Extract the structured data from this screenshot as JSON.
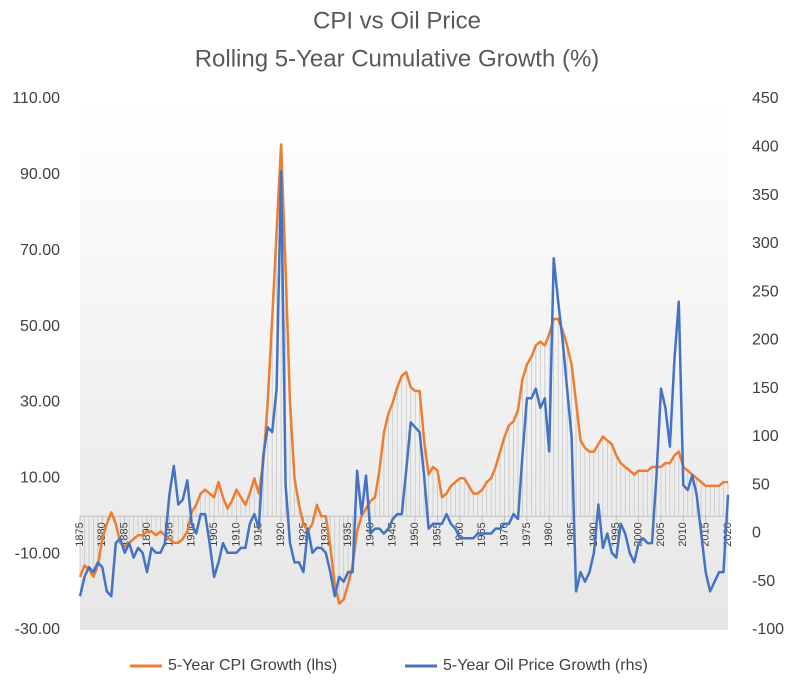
{
  "chart_data": {
    "type": "line",
    "title": "CPI vs Oil Price",
    "subtitle": "Rolling 5-Year Cumulative Growth (%)",
    "x": [
      1875,
      1876,
      1877,
      1878,
      1879,
      1880,
      1881,
      1882,
      1883,
      1884,
      1885,
      1886,
      1887,
      1888,
      1889,
      1890,
      1891,
      1892,
      1893,
      1894,
      1895,
      1896,
      1897,
      1898,
      1899,
      1900,
      1901,
      1902,
      1903,
      1904,
      1905,
      1906,
      1907,
      1908,
      1909,
      1910,
      1911,
      1912,
      1913,
      1914,
      1915,
      1916,
      1917,
      1918,
      1919,
      1920,
      1921,
      1922,
      1923,
      1924,
      1925,
      1926,
      1927,
      1928,
      1929,
      1930,
      1931,
      1932,
      1933,
      1934,
      1935,
      1936,
      1937,
      1938,
      1939,
      1940,
      1941,
      1942,
      1943,
      1944,
      1945,
      1946,
      1947,
      1948,
      1949,
      1950,
      1951,
      1952,
      1953,
      1954,
      1955,
      1956,
      1957,
      1958,
      1959,
      1960,
      1961,
      1962,
      1963,
      1964,
      1965,
      1966,
      1967,
      1968,
      1969,
      1970,
      1971,
      1972,
      1973,
      1974,
      1975,
      1976,
      1977,
      1978,
      1979,
      1980,
      1981,
      1982,
      1983,
      1984,
      1985,
      1986,
      1987,
      1988,
      1989,
      1990,
      1991,
      1992,
      1993,
      1994,
      1995,
      1996,
      1997,
      1998,
      1999,
      2000,
      2001,
      2002,
      2003,
      2004,
      2005,
      2006,
      2007,
      2008,
      2009,
      2010,
      2011,
      2012,
      2013,
      2014,
      2015,
      2016,
      2017,
      2018,
      2019,
      2020
    ],
    "xlim": [
      1875,
      2020
    ],
    "xticks": [
      1875,
      1880,
      1885,
      1890,
      1895,
      1900,
      1905,
      1910,
      1915,
      1920,
      1925,
      1930,
      1935,
      1940,
      1945,
      1950,
      1955,
      1960,
      1965,
      1970,
      1975,
      1980,
      1985,
      1990,
      1995,
      2000,
      2005,
      2010,
      2015,
      2020
    ],
    "ylim": [
      -30,
      110
    ],
    "yticks": [
      {
        "value": -30,
        "label": "-30.00"
      },
      {
        "value": -10,
        "label": "-10.00"
      },
      {
        "value": 10,
        "label": "10.00"
      },
      {
        "value": 30,
        "label": "30.00"
      },
      {
        "value": 50,
        "label": "50.00"
      },
      {
        "value": 70,
        "label": "70.00"
      },
      {
        "value": 90,
        "label": "90.00"
      },
      {
        "value": 110,
        "label": "110.00"
      }
    ],
    "y2lim": [
      -100,
      450
    ],
    "y2ticks": [
      -100,
      -50,
      0,
      50,
      100,
      150,
      200,
      250,
      300,
      350,
      400,
      450
    ],
    "series": [
      {
        "name": "5-Year CPI Growth (lhs)",
        "color": "#ed7d31",
        "axis": "y",
        "values": [
          -16,
          -13,
          -14,
          -16,
          -13,
          -6,
          -2,
          1,
          -2,
          -7,
          -8,
          -7,
          -6,
          -5,
          -5,
          -4,
          -4,
          -5,
          -4,
          -5,
          -6,
          -7,
          -7,
          -6,
          -4,
          1,
          3,
          6,
          7,
          6,
          5,
          9,
          5,
          2,
          4,
          7,
          5,
          3,
          6,
          10,
          6,
          14,
          30,
          52,
          75,
          98,
          65,
          30,
          10,
          3,
          -2,
          -4,
          -2,
          3,
          0,
          0,
          -8,
          -18,
          -23,
          -22,
          -18,
          -13,
          -4,
          0,
          2,
          4,
          5,
          12,
          22,
          27,
          30,
          34,
          37,
          38,
          34,
          33,
          33,
          20,
          11,
          13,
          12,
          5,
          6,
          8,
          9,
          10,
          10,
          8,
          6,
          6,
          7,
          9,
          10,
          13,
          17,
          21,
          24,
          25,
          28,
          36,
          40,
          42,
          45,
          46,
          45,
          48,
          52,
          52,
          49,
          45,
          40,
          30,
          20,
          18,
          17,
          17,
          19,
          21,
          20,
          19,
          16,
          14,
          13,
          12,
          11,
          12,
          12,
          12,
          13,
          13,
          13,
          14,
          14,
          16,
          17,
          13,
          12,
          11,
          10,
          9,
          8,
          8,
          8,
          8,
          9,
          9
        ]
      },
      {
        "name": "5-Year Oil Price Growth (rhs)",
        "color": "#4472c4",
        "axis": "y2",
        "values": [
          -65,
          -45,
          -35,
          -40,
          -30,
          -35,
          -60,
          -65,
          -10,
          -5,
          -20,
          -10,
          -25,
          -15,
          -20,
          -40,
          -15,
          -20,
          -20,
          -10,
          40,
          70,
          30,
          35,
          55,
          10,
          0,
          20,
          20,
          -10,
          -45,
          -30,
          -10,
          -20,
          -20,
          -20,
          -15,
          -15,
          10,
          20,
          5,
          80,
          110,
          105,
          150,
          375,
          50,
          -10,
          -30,
          -30,
          -40,
          5,
          -20,
          -15,
          -15,
          -20,
          -40,
          -65,
          -45,
          -50,
          -40,
          -40,
          65,
          20,
          60,
          0,
          5,
          5,
          0,
          5,
          15,
          20,
          20,
          65,
          115,
          110,
          105,
          60,
          5,
          10,
          10,
          10,
          20,
          10,
          5,
          -5,
          -5,
          -5,
          -5,
          0,
          0,
          0,
          0,
          5,
          5,
          10,
          10,
          20,
          15,
          80,
          140,
          140,
          150,
          130,
          140,
          85,
          285,
          240,
          200,
          150,
          100,
          -60,
          -40,
          -50,
          -40,
          -20,
          30,
          -15,
          0,
          -20,
          -25,
          10,
          0,
          -20,
          -30,
          -10,
          -5,
          -10,
          -10,
          60,
          150,
          130,
          90,
          180,
          240,
          50,
          45,
          60,
          40,
          0,
          -40,
          -60,
          -50,
          -40,
          -40,
          40
        ]
      }
    ]
  }
}
